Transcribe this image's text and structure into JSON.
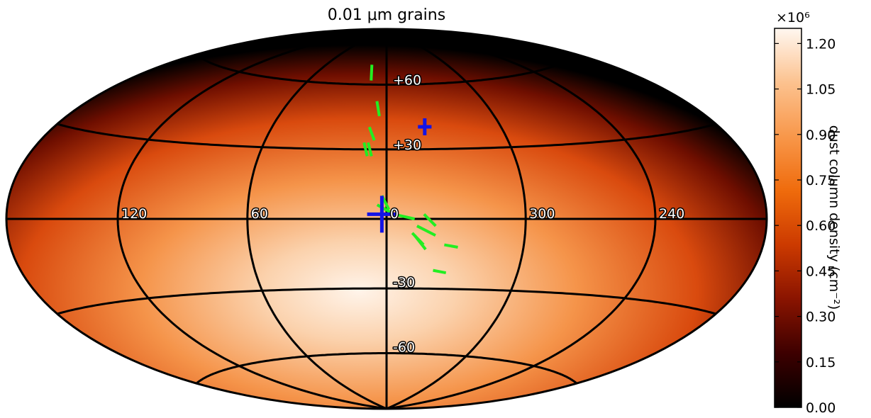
{
  "chart_data": {
    "type": "heatmap",
    "projection": "aitoff-hammer",
    "title": "0.01 μm grains",
    "colorbar": {
      "label": "dust column density (cm⁻²)",
      "multiplier": "×10⁶",
      "range": [
        0.0,
        1.25
      ],
      "ticks": [
        "0.00",
        "0.15",
        "0.30",
        "0.45",
        "0.60",
        "0.75",
        "0.90",
        "1.05",
        "1.20"
      ],
      "colormap": [
        "#000000",
        "#3d0000",
        "#8a1400",
        "#cc3a00",
        "#ef6b0c",
        "#f8974a",
        "#fcc28f",
        "#fff7f0"
      ]
    },
    "longitude_labels": [
      "120",
      "60",
      "0",
      "300",
      "240"
    ],
    "latitude_labels": [
      "+60",
      "+30",
      "-30",
      "-60"
    ],
    "grid": true,
    "markers": {
      "blue_crosses": [
        {
          "lon": 2,
          "lat": 2,
          "size": "large"
        },
        {
          "lon": -20,
          "lat": 40,
          "size": "small"
        }
      ],
      "green_segments": [
        [
          [
            15,
            70
          ],
          [
            12,
            62
          ]
        ],
        [
          [
            6,
            52
          ],
          [
            4,
            45
          ]
        ],
        [
          [
            9,
            40
          ],
          [
            6,
            34
          ]
        ],
        [
          [
            11,
            33
          ],
          [
            9,
            27
          ]
        ],
        [
          [
            9,
            33
          ],
          [
            7,
            27
          ]
        ],
        [
          [
            2,
            10
          ],
          [
            -1,
            4
          ]
        ],
        [
          [
            4,
            6
          ],
          [
            -5,
            1
          ]
        ],
        [
          [
            -3,
            2
          ],
          [
            -12,
            0
          ]
        ],
        [
          [
            -16,
            2
          ],
          [
            -21,
            -3
          ]
        ],
        [
          [
            -13,
            -3
          ],
          [
            -21,
            -7
          ]
        ],
        [
          [
            -11,
            -6
          ],
          [
            -16,
            -11
          ]
        ],
        [
          [
            -12,
            -7
          ],
          [
            -17,
            -13
          ]
        ],
        [
          [
            -25,
            -11
          ],
          [
            -31,
            -12
          ]
        ],
        [
          [
            -21,
            -22
          ],
          [
            -27,
            -23
          ]
        ]
      ]
    }
  }
}
